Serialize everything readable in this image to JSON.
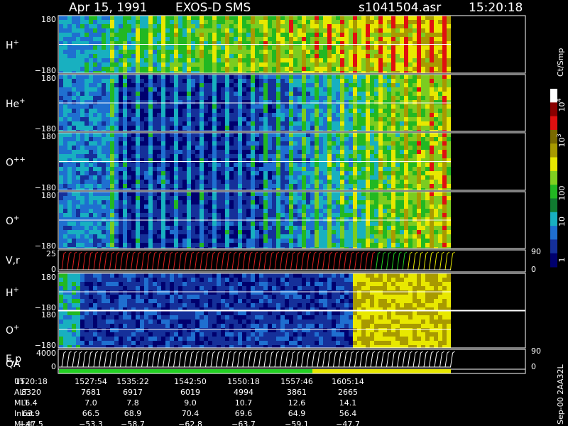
{
  "header": {
    "date": "Apr 15, 1991",
    "instrument": "EXOS-D SMS",
    "file": "s1041504.asr",
    "time": "15:20:18"
  },
  "panels": [
    {
      "label": "H",
      "sup": "+",
      "ytop": "180",
      "ybottom": "−180"
    },
    {
      "label": "He",
      "sup": "+",
      "ytop": "180",
      "ybottom": "−180"
    },
    {
      "label": "O",
      "sup": "++",
      "ytop": "180",
      "ybottom": "−180"
    },
    {
      "label": "O",
      "sup": "+",
      "ytop": "180",
      "ybottom": "−180"
    },
    {
      "label": "V,r",
      "ytop": "25",
      "ybottom": "0",
      "rtop": "90",
      "rbottom": "0"
    },
    {
      "label": "H",
      "sup": "+",
      "ytop": "180",
      "ybottom": "−180"
    },
    {
      "label": "O",
      "sup": "+",
      "ytop": "180",
      "ybottom": "−180"
    },
    {
      "label": "E,p",
      "ytop": "4000",
      "ybottom": "0",
      "rtop": "90",
      "rbottom": "0"
    }
  ],
  "qa_label": "QA",
  "colorbar": {
    "title": "Ct/Smp",
    "labels": [
      {
        "base": "10",
        "sup": "4"
      },
      {
        "base": "10",
        "sup": "3"
      },
      {
        "base": "100"
      },
      {
        "base": "10"
      },
      {
        "base": "1"
      }
    ]
  },
  "table": {
    "rows": [
      {
        "name": "UT",
        "cells": [
          "1520:18",
          "1527:54",
          "1535:22",
          "1542:50",
          "1550:18",
          "1557:46",
          "1605:14"
        ]
      },
      {
        "name": "ALT",
        "cells": [
          "8320",
          "7681",
          "6917",
          "6019",
          "4994",
          "3861",
          "2665"
        ]
      },
      {
        "name": "MLT",
        "cells": [
          "6.4",
          "7.0",
          "7.8",
          "9.0",
          "10.7",
          "12.6",
          "14.1"
        ]
      },
      {
        "name": "InLat",
        "cells": [
          "63.9",
          "66.5",
          "68.9",
          "70.4",
          "69.6",
          "64.9",
          "56.4"
        ]
      },
      {
        "name": "MLat",
        "cells": [
          "−47.5",
          "−53.3",
          "−58.7",
          "−62.8",
          "−63.7",
          "−59.1",
          "−47.7"
        ]
      }
    ]
  },
  "footer": "Sep-00 2AA32L"
}
